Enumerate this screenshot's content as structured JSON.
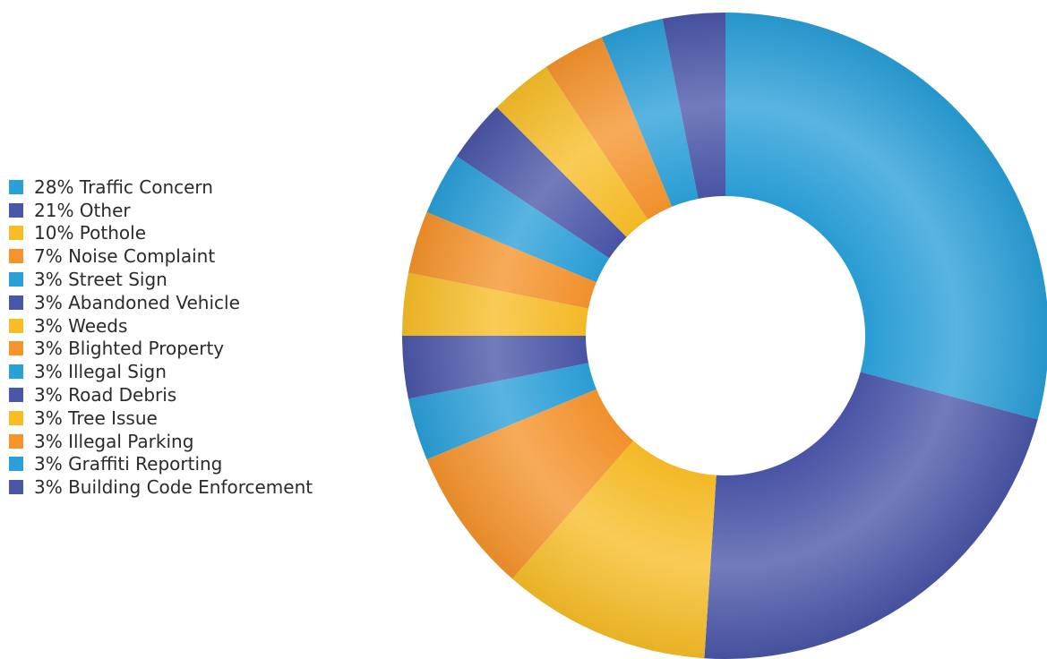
{
  "palette": {
    "blue": "#2a9fd8",
    "indigo": "#4a56a8",
    "yellow": "#f7bd27",
    "orange": "#f5932c"
  },
  "chart_data": {
    "type": "pie",
    "variant": "donut",
    "legend_position": "left",
    "slices": [
      {
        "label": "28% Traffic Concern",
        "percent": 28,
        "color": "#2a9fd8"
      },
      {
        "label": "21% Other",
        "percent": 21,
        "color": "#4a56a8"
      },
      {
        "label": "10% Pothole",
        "percent": 10,
        "color": "#f7bd27"
      },
      {
        "label": "7% Noise Complaint",
        "percent": 7,
        "color": "#f5932c"
      },
      {
        "label": "3% Street Sign",
        "percent": 3,
        "color": "#2a9fd8"
      },
      {
        "label": "3% Abandoned Vehicle",
        "percent": 3,
        "color": "#4a56a8"
      },
      {
        "label": "3% Weeds",
        "percent": 3,
        "color": "#f7bd27"
      },
      {
        "label": "3% Blighted Property",
        "percent": 3,
        "color": "#f5932c"
      },
      {
        "label": "3% Illegal Sign",
        "percent": 3,
        "color": "#2a9fd8"
      },
      {
        "label": "3% Road Debris",
        "percent": 3,
        "color": "#4a56a8"
      },
      {
        "label": "3% Tree Issue",
        "percent": 3,
        "color": "#f7bd27"
      },
      {
        "label": "3% Illegal Parking",
        "percent": 3,
        "color": "#f5932c"
      },
      {
        "label": "3% Graffiti Reporting",
        "percent": 3,
        "color": "#2a9fd8"
      },
      {
        "label": "3% Building Code Enforcement",
        "percent": 3,
        "color": "#4a56a8"
      }
    ]
  }
}
